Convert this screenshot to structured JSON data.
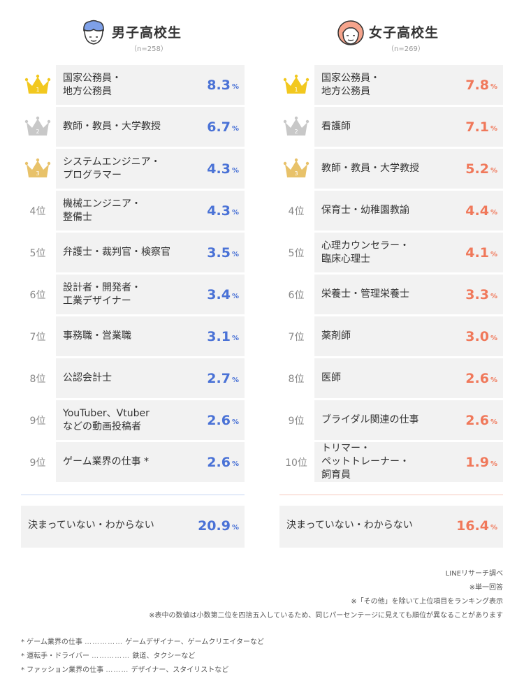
{
  "colors": {
    "boys": "#4a72d6",
    "girls": "#f0785a",
    "gold": "#f2c81f",
    "silver": "#c8c8c8",
    "bronze": "#e8c26a"
  },
  "chart_data": [
    {
      "type": "table",
      "title": "男子高校生",
      "n": "（n=258）",
      "unit": "%",
      "rows": [
        {
          "rank": "1",
          "label": "国家公務員・\n地方公務員",
          "value": "8.3"
        },
        {
          "rank": "2",
          "label": "教師・教員・大学教授",
          "value": "6.7"
        },
        {
          "rank": "3",
          "label": "システムエンジニア・\nプログラマー",
          "value": "4.3"
        },
        {
          "rank": "4位",
          "label": "機械エンジニア・\n整備士",
          "value": "4.3"
        },
        {
          "rank": "5位",
          "label": "弁護士・裁判官・検察官",
          "value": "3.5"
        },
        {
          "rank": "6位",
          "label": "設計者・開発者・\n工業デザイナー",
          "value": "3.4"
        },
        {
          "rank": "7位",
          "label": "事務職・営業職",
          "value": "3.1"
        },
        {
          "rank": "8位",
          "label": "公認会計士",
          "value": "2.7"
        },
        {
          "rank": "9位",
          "label": "YouTuber、Vtuber\nなどの動画投稿者",
          "value": "2.6"
        },
        {
          "rank": "9位",
          "label": "ゲーム業界の仕事 *",
          "value": "2.6"
        }
      ],
      "summary": {
        "label": "決まっていない・わからない",
        "value": "20.9"
      }
    },
    {
      "type": "table",
      "title": "女子高校生",
      "n": "（n=269）",
      "unit": "%",
      "rows": [
        {
          "rank": "1",
          "label": "国家公務員・\n地方公務員",
          "value": "7.8"
        },
        {
          "rank": "2",
          "label": "看護師",
          "value": "7.1"
        },
        {
          "rank": "3",
          "label": "教師・教員・大学教授",
          "value": "5.2"
        },
        {
          "rank": "4位",
          "label": "保育士・幼稚園教諭",
          "value": "4.4"
        },
        {
          "rank": "5位",
          "label": "心理カウンセラー・\n臨床心理士",
          "value": "4.1"
        },
        {
          "rank": "6位",
          "label": "栄養士・管理栄養士",
          "value": "3.3"
        },
        {
          "rank": "7位",
          "label": "薬剤師",
          "value": "3.0"
        },
        {
          "rank": "8位",
          "label": "医師",
          "value": "2.6"
        },
        {
          "rank": "9位",
          "label": "ブライダル関連の仕事",
          "value": "2.6"
        },
        {
          "rank": "10位",
          "label": "トリマー・\nペットトレーナー・\n飼育員",
          "value": "1.9"
        }
      ],
      "summary": {
        "label": "決まっていない・わからない",
        "value": "16.4"
      }
    }
  ],
  "notes": [
    "LINEリサーチ調べ",
    "※単一回答",
    "※「その他」を除いて上位項目をランキング表示",
    "※表中の数値は小数第二位を四捨五入しているため、同じパーセンテージに見えても順位が異なることがあります"
  ],
  "footnotes": [
    {
      "term": "* ゲーム業界の仕事",
      "dots": "……………",
      "desc": "ゲームデザイナー、ゲームクリエイターなど"
    },
    {
      "term": "* 運転手・ドライバー",
      "dots": "……………",
      "desc": "鉄道、タクシーなど"
    },
    {
      "term": "* ファッション業界の仕事",
      "dots": "………",
      "desc": "デザイナー、スタイリストなど"
    }
  ]
}
